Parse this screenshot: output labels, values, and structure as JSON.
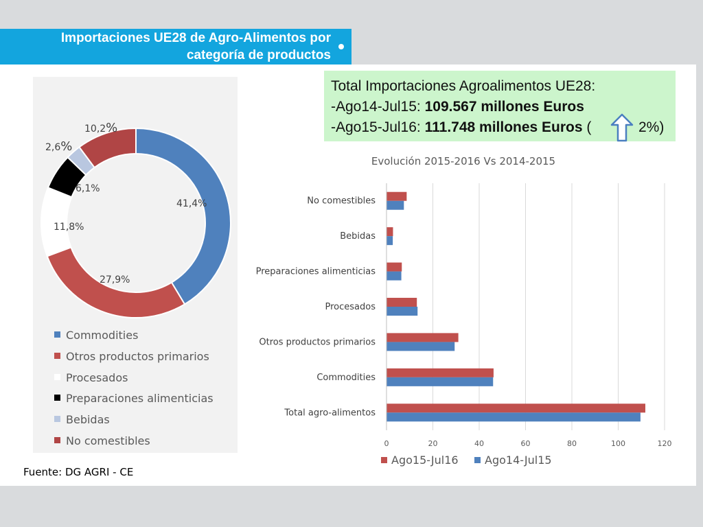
{
  "header": {
    "title_line1": "Importaciones UE28 de Agro-Alimentos por",
    "title_line2": "categoría de productos"
  },
  "info": {
    "line1": "Total Importaciones Agroalimentos UE28:",
    "line2_prefix": "-Ago14-Jul15: ",
    "line2_value": "109.567 millones Euros",
    "line3_prefix": "-Ago15-Jul16: ",
    "line3_value": "111.748 millones Euros",
    "line3_paren_open": "(",
    "line3_tail": "2%)",
    "arrow_icon": "arrow-up-icon"
  },
  "source": "Fuente: DG AGRI - CE",
  "chart_data": [
    {
      "type": "pie",
      "variant": "donut",
      "slices": [
        {
          "name": "Commodities",
          "value": 41.4,
          "label": "41,4%",
          "color": "#4f81bd"
        },
        {
          "name": "Otros productos primarios",
          "value": 27.9,
          "label": "27,9%",
          "color": "#c0504d"
        },
        {
          "name": "Procesados",
          "value": 11.8,
          "label": "11,8%",
          "color": "#ffffff"
        },
        {
          "name": "Preparaciones alimenticias",
          "value": 6.1,
          "label": "6,1%",
          "color": "#000000"
        },
        {
          "name": "Bebidas",
          "value": 2.6,
          "label_num": "2,6",
          "label_pct": "%",
          "color": "#b9c7e0"
        },
        {
          "name": "No comestibles",
          "value": 10.2,
          "label_num": "10,2",
          "label_pct": "%",
          "color": "#b04545"
        }
      ],
      "legend_placement": "bottom"
    },
    {
      "type": "bar",
      "orientation": "horizontal",
      "title": "Evolución 2015-2016 Vs 2014-2015",
      "categories": [
        "No comestibles",
        "Bebidas",
        "Preparaciones alimenticias",
        "Procesados",
        "Otros productos primarios",
        "Commodities",
        "Total agro-alimentos"
      ],
      "series": [
        {
          "name": "Ago15-Jul16",
          "color": "#c0504d",
          "values": [
            8.7,
            2.8,
            6.6,
            13.1,
            31.0,
            46.2,
            111.7
          ]
        },
        {
          "name": "Ago14-Jul15",
          "color": "#4f81bd",
          "values": [
            7.5,
            2.7,
            6.4,
            13.4,
            29.4,
            46.0,
            109.6
          ]
        }
      ],
      "xlim": [
        0,
        120
      ],
      "xticks": [
        "0",
        "20",
        "40",
        "60",
        "80",
        "100",
        "120"
      ],
      "grid": "vertical",
      "legend_placement": "bottom"
    }
  ]
}
